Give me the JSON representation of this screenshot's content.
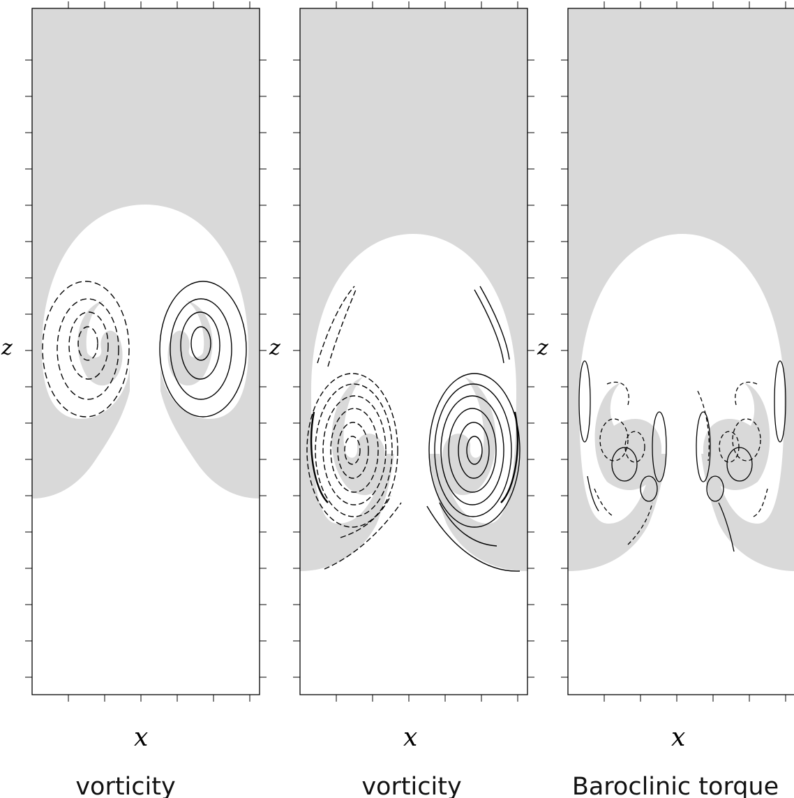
{
  "panels": [
    {
      "id": "p1",
      "xlabel": "x",
      "zlabel": "z",
      "caption": "vorticity"
    },
    {
      "id": "p2",
      "xlabel": "x",
      "zlabel": "z",
      "caption": "vorticity"
    },
    {
      "id": "p3",
      "xlabel": "x",
      "zlabel": "z",
      "caption": "Baroclinic torque"
    }
  ],
  "colors": {
    "heavy_fluid": "#d9d9d9",
    "light_fluid": "#ffffff",
    "contour": "#000000"
  },
  "legend_semantics": {
    "solid": "positive",
    "dashed": "negative"
  }
}
